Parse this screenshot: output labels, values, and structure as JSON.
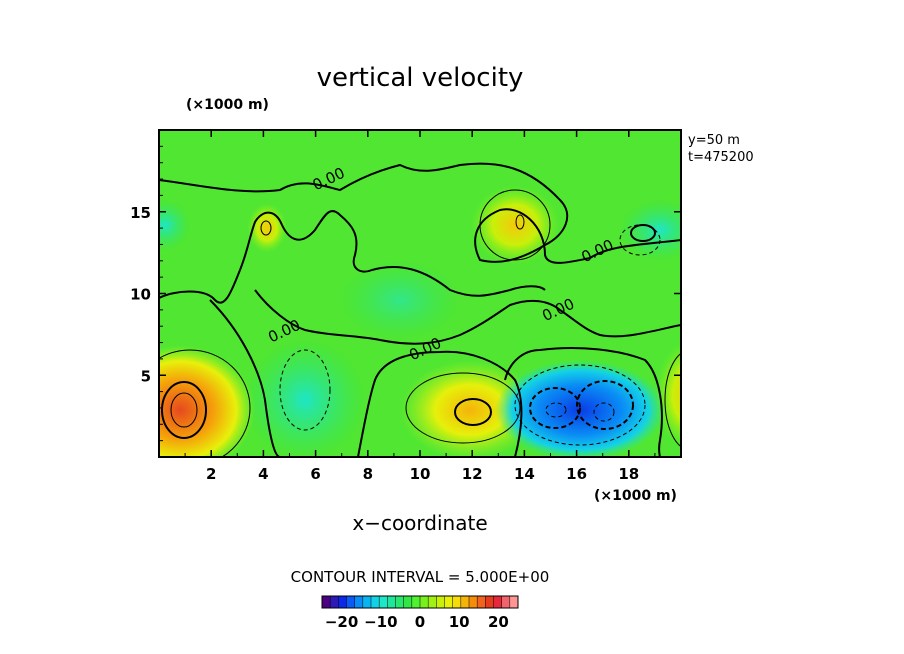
{
  "chart_data": {
    "type": "heatmap",
    "title": "vertical velocity",
    "y_unit_label": "(×1000 m)",
    "x_unit_label": "(×1000 m)",
    "xlabel": "x−coordinate",
    "ylabel": "",
    "xlim": [
      0,
      20
    ],
    "ylim": [
      0,
      20
    ],
    "x_ticks": [
      2,
      4,
      6,
      8,
      10,
      12,
      14,
      16,
      18
    ],
    "y_ticks": [
      5,
      10,
      15
    ],
    "info_lines": [
      "y=50  m",
      "t=475200"
    ],
    "contour_interval_text": "CONTOUR INTERVAL = 5.000E+00",
    "contour_labels": [
      {
        "text": "0.00",
        "x": 6.5,
        "y": 17.0
      },
      {
        "text": "0.00",
        "x": 16.8,
        "y": 12.6
      },
      {
        "text": "0.00",
        "x": 15.3,
        "y": 9.0
      },
      {
        "text": "0.00",
        "x": 4.8,
        "y": 7.7
      },
      {
        "text": "0.00",
        "x": 10.2,
        "y": 6.6
      }
    ],
    "features": [
      {
        "name": "max",
        "x": 1.0,
        "y": 2.8,
        "value": 20
      },
      {
        "name": "max",
        "x": 12.0,
        "y": 2.8,
        "value": 10
      },
      {
        "name": "min",
        "x": 15.3,
        "y": 2.7,
        "value": -12
      },
      {
        "name": "min",
        "x": 17.0,
        "y": 2.6,
        "value": -14
      },
      {
        "name": "max",
        "x": 4.2,
        "y": 14.1,
        "value": 6
      },
      {
        "name": "max",
        "x": 13.7,
        "y": 14.4,
        "value": 7
      }
    ],
    "colorbar": {
      "range": [
        -25,
        25
      ],
      "ticks": [
        -20,
        -10,
        0,
        10,
        20
      ],
      "tick_labels": [
        "−20",
        "−10",
        "0",
        "10",
        "20"
      ],
      "colors": [
        "#4b0082",
        "#2d1ab4",
        "#0a28e6",
        "#0a5af5",
        "#0a8cf5",
        "#0ab4f0",
        "#14d2e6",
        "#1ee6c8",
        "#1ee69b",
        "#28e66e",
        "#32e646",
        "#50f032",
        "#78f01e",
        "#a0f014",
        "#c8f00a",
        "#e6f00a",
        "#f5dc0a",
        "#f5b40a",
        "#f58c0a",
        "#f0641e",
        "#e63c1e",
        "#e6283c",
        "#f0646e",
        "#ff9696"
      ]
    }
  }
}
